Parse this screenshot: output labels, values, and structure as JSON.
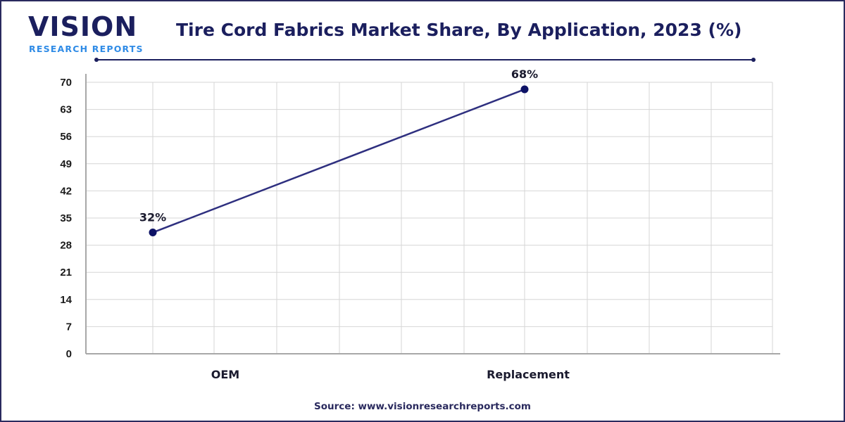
{
  "brand": {
    "logo_main": "VISION",
    "logo_sub": "RESEARCH REPORTS",
    "colors": {
      "navy": "#1b1f5e",
      "blue": "#2f8be6"
    }
  },
  "header": {
    "title": "Tire Cord Fabrics Market Share, By Application, 2023 (%)"
  },
  "footer": {
    "source": "Source: www.visionresearchreports.com"
  },
  "chart_data": {
    "type": "line",
    "title": "Tire Cord Fabrics Market Share, By Application, 2023 (%)",
    "categories": [
      "OEM",
      "Replacement"
    ],
    "series": [
      {
        "name": "Market Share (%)",
        "values": [
          32,
          68
        ],
        "labels": [
          "32%",
          "68%"
        ],
        "color": "#2e2f7f"
      }
    ],
    "xlabel": "",
    "ylabel": "",
    "ylim": [
      0,
      70
    ],
    "yticks": [
      "0",
      "7",
      "14",
      "21",
      "28",
      "35",
      "42",
      "49",
      "56",
      "63",
      "70"
    ],
    "grid": true,
    "legend": null
  }
}
